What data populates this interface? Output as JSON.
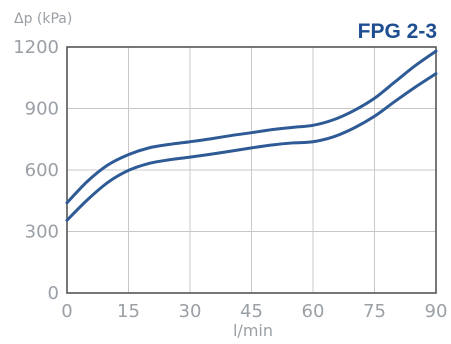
{
  "chart_data": {
    "type": "line",
    "title": "FPG 2-3",
    "ylabel": "Δp (kPa)",
    "xlabel": "l/min",
    "xlim": [
      0,
      90
    ],
    "ylim": [
      0,
      1200
    ],
    "x_ticks": [
      0,
      15,
      30,
      45,
      60,
      75,
      90
    ],
    "y_ticks": [
      300,
      600,
      900,
      1200
    ],
    "grid": true,
    "colors": {
      "line": "#2e5a96",
      "title": "#1f4f91",
      "axis_text": "#9aa0a6",
      "grid": "#c8c8c8",
      "frame": "#555555"
    },
    "series": [
      {
        "x": [
          0,
          5,
          10,
          15,
          20,
          25,
          30,
          35,
          40,
          45,
          50,
          55,
          60,
          65,
          70,
          75,
          80,
          85,
          90
        ],
        "values": [
          440,
          545,
          625,
          675,
          708,
          725,
          738,
          752,
          768,
          782,
          797,
          808,
          818,
          845,
          890,
          950,
          1030,
          1110,
          1180
        ]
      },
      {
        "x": [
          0,
          5,
          10,
          15,
          20,
          25,
          30,
          35,
          40,
          45,
          50,
          55,
          60,
          65,
          70,
          75,
          80,
          85,
          90
        ],
        "values": [
          355,
          455,
          540,
          598,
          632,
          650,
          663,
          677,
          692,
          708,
          722,
          732,
          738,
          762,
          805,
          862,
          935,
          1005,
          1070
        ]
      }
    ]
  }
}
